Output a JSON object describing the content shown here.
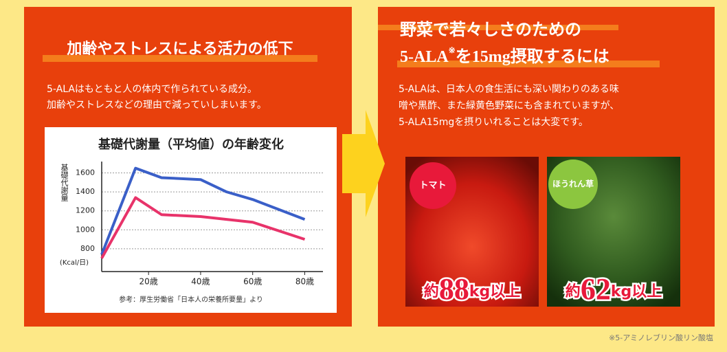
{
  "left": {
    "heading": "加齢やストレスによる活力の低下",
    "body": [
      "5-ALAはもともと人の体内で作られている成分。",
      "加齢やストレスなどの理由で減っていしまいます。"
    ],
    "source": "参考：厚生労働省「日本人の栄養所要量」より"
  },
  "chart_data": {
    "type": "line",
    "title": "基礎代謝量（平均値）の年齢変化",
    "y_label": "基礎代謝量",
    "y_unit": "(Kcal/日)",
    "x": [
      2,
      15,
      25,
      40,
      50,
      60,
      80
    ],
    "xlim": [
      2,
      87
    ],
    "xticks": [
      {
        "value": 20,
        "label": "20歳"
      },
      {
        "value": 40,
        "label": "40歳"
      },
      {
        "value": 60,
        "label": "60歳"
      },
      {
        "value": 80,
        "label": "80歳"
      }
    ],
    "ylim": [
      560,
      1720
    ],
    "yticks": [
      800,
      1000,
      1200,
      1400,
      1600
    ],
    "grid": true,
    "series": [
      {
        "color": "#3a5fc8",
        "values": [
          740,
          1650,
          1550,
          1530,
          1400,
          1320,
          1110
        ]
      },
      {
        "color": "#e8336a",
        "values": [
          700,
          1340,
          1160,
          1140,
          1110,
          1080,
          900
        ]
      }
    ]
  },
  "right": {
    "heading": [
      "野菜で若々しさのための",
      "5-ALA",
      "※",
      "を15mg摂取するには"
    ],
    "body": [
      "5-ALAは、日本人の食生活にも深い関わりのある味",
      "噌や黒酢、また緑黄色野菜にも含まれていますが、",
      "5-ALA15mgを摂りいれることは大変です。"
    ],
    "items": [
      {
        "badge": "トマト",
        "prefix": "約",
        "amount": "88",
        "suffix": "kg以上"
      },
      {
        "badge": "ほうれん草",
        "prefix": "約",
        "amount": "62",
        "suffix": "kg以上"
      }
    ]
  },
  "footnote": "※5-アミノレブリン酸リン酸塩"
}
